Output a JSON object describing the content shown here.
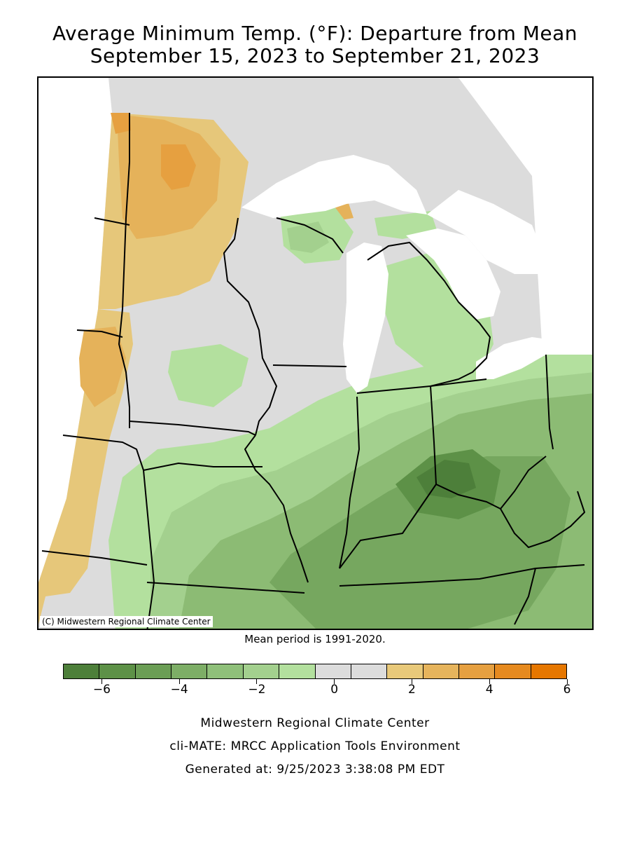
{
  "title_line1": "Average Minimum Temp. (°F): Departure from Mean",
  "title_line2": "September 15, 2023 to September 21, 2023",
  "map": {
    "copyright": "(C) Midwestern Regional Climate Center",
    "colors": {
      "water": "#ffffff",
      "neutral": "#dcdcdc",
      "dg6": "#4d7f3a",
      "dg5": "#5d9147",
      "dg4": "#76a75f",
      "dg3": "#8cbb74",
      "dg2": "#a3d08e",
      "dg1": "#b3e09e",
      "wm1": "#e6c77a",
      "wm2": "#e5b25a",
      "wm3": "#e6a040",
      "wm4": "#e68a1f"
    }
  },
  "mean_note": "Mean period is 1991-2020.",
  "legend": {
    "colors": [
      "#4d7f3a",
      "#5d9147",
      "#6b9e55",
      "#7dae66",
      "#8fc07a",
      "#a3d08e",
      "#b3e09e",
      "#dcdcdc",
      "#dcdcdc",
      "#e8c97a",
      "#e6b45c",
      "#e6a040",
      "#e68a1f",
      "#e67700"
    ],
    "ticks": [
      {
        "label": "-6",
        "value": -6
      },
      {
        "label": "-4",
        "value": -4
      },
      {
        "label": "-2",
        "value": -2
      },
      {
        "label": "0",
        "value": 0
      },
      {
        "label": "2",
        "value": 2
      },
      {
        "label": "4",
        "value": 4
      },
      {
        "label": "6",
        "value": 6
      }
    ],
    "min": -7,
    "max": 6
  },
  "footer": {
    "line1": "Midwestern Regional Climate Center",
    "line2": "cli-MATE: MRCC Application Tools Environment",
    "line3": "Generated at: 9/25/2023 3:38:08 PM EDT"
  }
}
